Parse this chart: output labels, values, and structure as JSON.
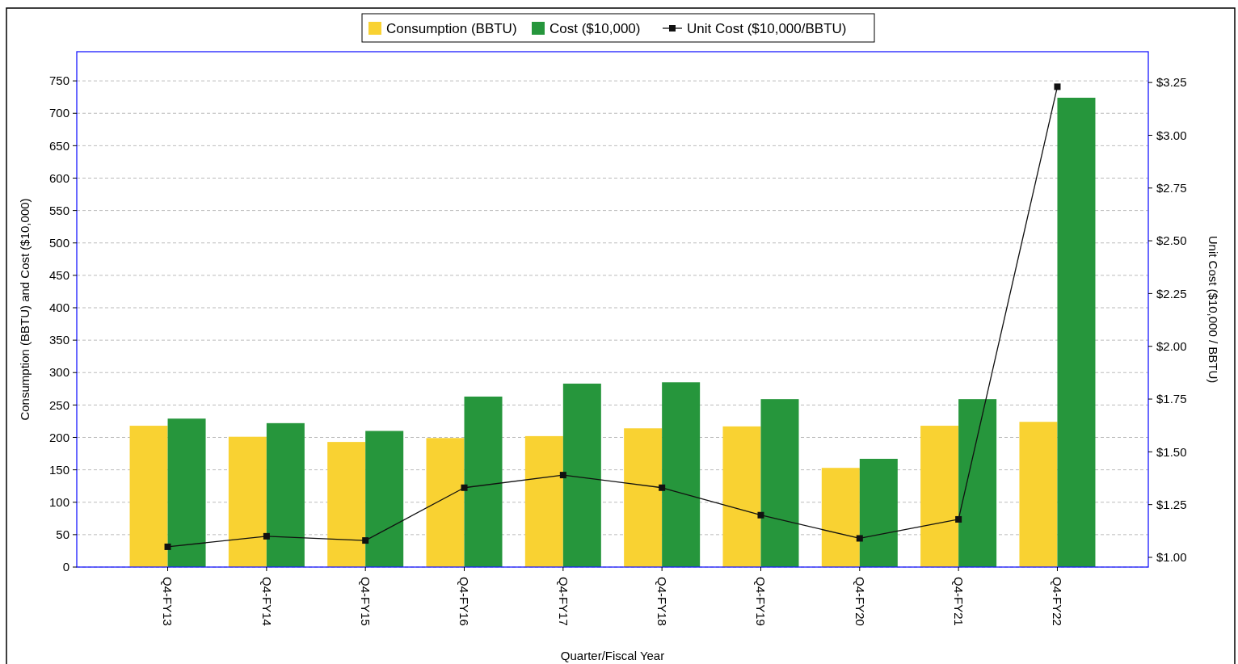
{
  "chart_data": {
    "type": "bar",
    "xlabel": "Quarter/Fiscal Year",
    "ylabel": "Consumption (BBTU) and Cost ($10,000)",
    "y2label": "Unit Cost ($10,000 / BBTU)",
    "categories": [
      "Q4-FY13",
      "Q4-FY14",
      "Q4-FY15",
      "Q4-FY16",
      "Q4-FY17",
      "Q4-FY18",
      "Q4-FY19",
      "Q4-FY20",
      "Q4-FY21",
      "Q4-FY22"
    ],
    "series": [
      {
        "name": "Consumption (BBTU)",
        "color": "#f9d232",
        "values": [
          218,
          201,
          193,
          199,
          202,
          214,
          217,
          153,
          218,
          224
        ]
      },
      {
        "name": "Cost ($10,000)",
        "color": "#26963c",
        "values": [
          229,
          222,
          210,
          263,
          283,
          285,
          259,
          167,
          259,
          724
        ]
      },
      {
        "name": "Unit Cost ($10,000/BBTU)",
        "type": "line",
        "axis": "y2",
        "color": "#111111",
        "marker": "square",
        "values": [
          1.05,
          1.1,
          1.08,
          1.33,
          1.39,
          1.33,
          1.2,
          1.09,
          1.18,
          3.23
        ]
      }
    ],
    "ylim": [
      0,
      795
    ],
    "yticks": [
      0,
      50,
      100,
      150,
      200,
      250,
      300,
      350,
      400,
      450,
      500,
      550,
      600,
      650,
      700,
      750
    ],
    "y2lim": [
      0.954,
      3.396
    ],
    "y2ticks": [
      {
        "value": 1,
        "label": "$1.00"
      },
      {
        "value": 1.25,
        "label": "$1.25"
      },
      {
        "value": 1.5,
        "label": "$1.50"
      },
      {
        "value": 1.75,
        "label": "$1.75"
      },
      {
        "value": 2,
        "label": "$2.00"
      },
      {
        "value": 2.25,
        "label": "$2.25"
      },
      {
        "value": 2.5,
        "label": "$2.50"
      },
      {
        "value": 2.75,
        "label": "$2.75"
      },
      {
        "value": 3,
        "label": "$3.00"
      },
      {
        "value": 3.25,
        "label": "$3.25"
      }
    ],
    "grid": "y",
    "legend": "top"
  }
}
